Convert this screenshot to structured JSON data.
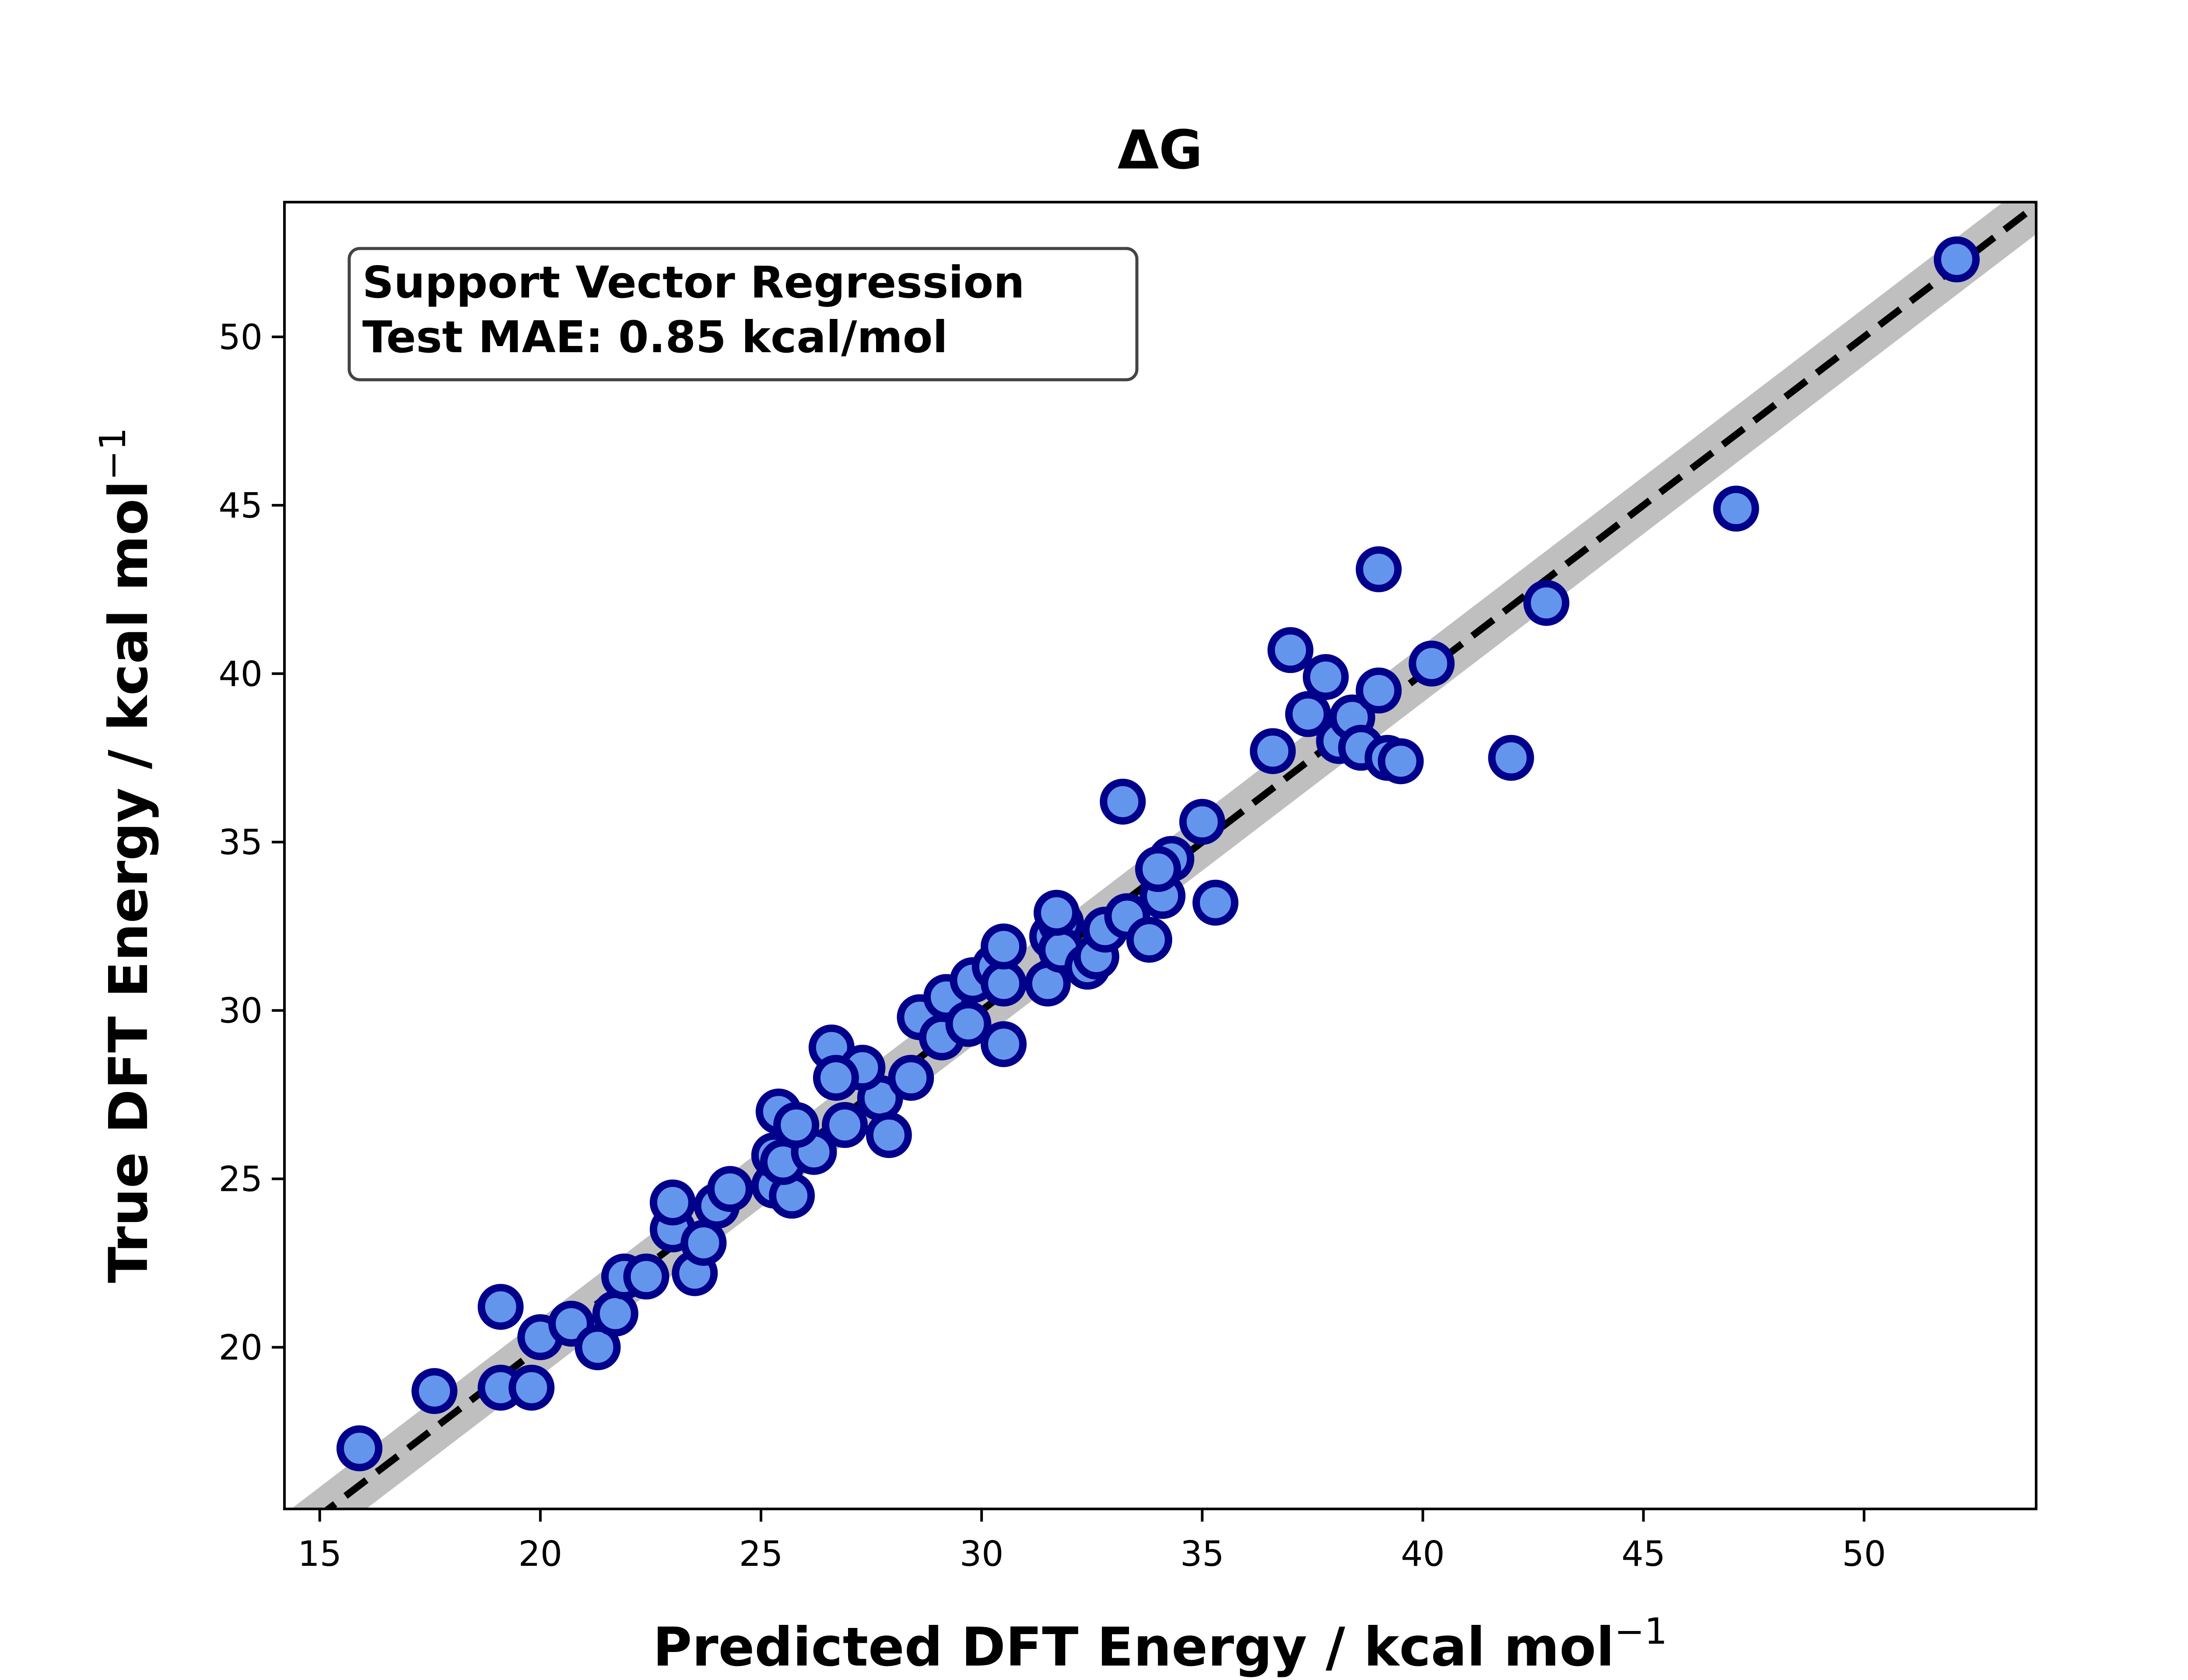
{
  "chart_data": {
    "type": "scatter",
    "title": "ΔG",
    "xlabel": "Predicted DFT Energy / kcal mol",
    "ylabel": "True DFT Energy / kcal mol",
    "label_superscript": "−1",
    "xlim": [
      14.2,
      53.9
    ],
    "ylim": [
      15.2,
      54.0
    ],
    "xticks": [
      "15",
      "20",
      "25",
      "30",
      "35",
      "40",
      "45",
      "50"
    ],
    "yticks": [
      "20",
      "25",
      "30",
      "35",
      "40",
      "45",
      "50"
    ],
    "grid": false,
    "annotation": [
      "Support Vector Regression",
      "Test MAE: 0.85 kcal/mol"
    ],
    "reference_line": {
      "style": "dashed",
      "color": "#000000",
      "band_halfwidth": 0.85,
      "band_color": "#bfbfbf"
    },
    "marker": {
      "fill": "#6495ED",
      "edge": "#00008B"
    },
    "points": [
      [
        15.9,
        17.0
      ],
      [
        17.6,
        18.7
      ],
      [
        19.1,
        18.8
      ],
      [
        19.8,
        18.8
      ],
      [
        19.1,
        21.2
      ],
      [
        20.0,
        20.3
      ],
      [
        20.7,
        20.7
      ],
      [
        21.3,
        20.0
      ],
      [
        21.7,
        21.0
      ],
      [
        21.9,
        22.1
      ],
      [
        22.4,
        22.1
      ],
      [
        23.5,
        22.2
      ],
      [
        23.0,
        23.5
      ],
      [
        23.7,
        23.1
      ],
      [
        23.0,
        24.3
      ],
      [
        24.0,
        24.2
      ],
      [
        24.3,
        24.7
      ],
      [
        25.3,
        24.8
      ],
      [
        25.7,
        24.5
      ],
      [
        25.3,
        25.7
      ],
      [
        25.5,
        25.5
      ],
      [
        26.2,
        25.8
      ],
      [
        25.4,
        27.0
      ],
      [
        25.8,
        26.6
      ],
      [
        26.9,
        26.6
      ],
      [
        27.7,
        27.4
      ],
      [
        27.9,
        26.3
      ],
      [
        26.6,
        28.9
      ],
      [
        27.3,
        28.3
      ],
      [
        26.7,
        28.0
      ],
      [
        28.4,
        28.0
      ],
      [
        28.6,
        29.8
      ],
      [
        29.1,
        29.2
      ],
      [
        29.2,
        30.4
      ],
      [
        29.7,
        29.6
      ],
      [
        29.8,
        30.9
      ],
      [
        30.3,
        31.3
      ],
      [
        30.5,
        30.8
      ],
      [
        30.5,
        29.0
      ],
      [
        30.5,
        31.9
      ],
      [
        31.5,
        30.8
      ],
      [
        31.6,
        32.2
      ],
      [
        31.8,
        32.6
      ],
      [
        31.8,
        31.8
      ],
      [
        32.4,
        31.3
      ],
      [
        32.6,
        31.6
      ],
      [
        32.8,
        32.4
      ],
      [
        31.7,
        32.9
      ],
      [
        33.3,
        32.8
      ],
      [
        33.8,
        32.1
      ],
      [
        34.1,
        33.4
      ],
      [
        34.3,
        34.5
      ],
      [
        34.0,
        34.2
      ],
      [
        35.3,
        33.2
      ],
      [
        35.0,
        35.6
      ],
      [
        33.2,
        36.2
      ],
      [
        36.6,
        37.7
      ],
      [
        37.0,
        40.7
      ],
      [
        37.4,
        38.8
      ],
      [
        37.8,
        39.9
      ],
      [
        38.1,
        38.0
      ],
      [
        38.4,
        38.7
      ],
      [
        38.6,
        37.8
      ],
      [
        39.0,
        39.5
      ],
      [
        39.2,
        37.5
      ],
      [
        39.5,
        37.4
      ],
      [
        39.0,
        43.1
      ],
      [
        40.2,
        40.3
      ],
      [
        42.0,
        37.5
      ],
      [
        42.8,
        42.1
      ],
      [
        47.1,
        44.9
      ],
      [
        52.1,
        52.3
      ]
    ]
  }
}
